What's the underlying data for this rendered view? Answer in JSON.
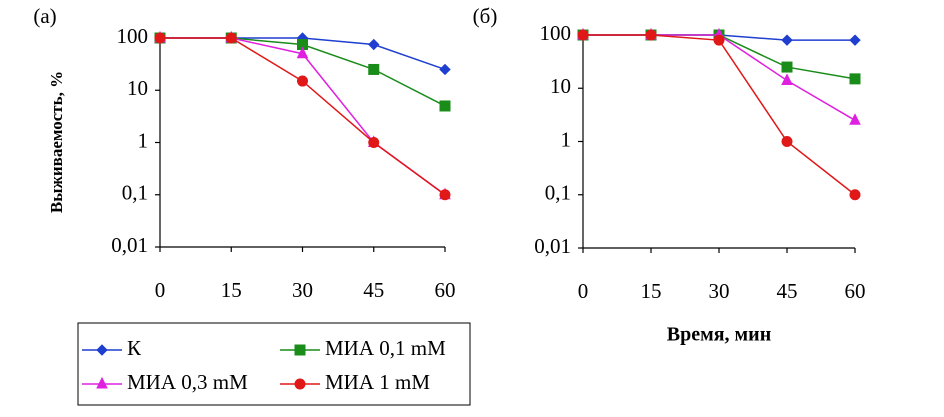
{
  "chart_data": [
    {
      "type": "line",
      "title": "(a)",
      "ylabel": "Выживаемость, %",
      "log_y": true,
      "x": [
        0,
        15,
        30,
        45,
        60
      ],
      "xlim": [
        0,
        60
      ],
      "xticks": [
        0,
        15,
        30,
        45,
        60
      ],
      "ylim": [
        0.01,
        100
      ],
      "yticks": [
        {
          "value": 0.01,
          "label": "0,01"
        },
        {
          "value": 0.1,
          "label": "0,1"
        },
        1,
        10,
        100
      ],
      "series": [
        {
          "name": "К",
          "color": "#1f3fd0",
          "values": [
            100,
            100,
            100,
            75,
            25
          ]
        },
        {
          "name": "МИА 0,1 mM",
          "color": "#1a8c1a",
          "values": [
            100,
            100,
            75,
            25,
            5
          ]
        },
        {
          "name": "МИА 0,3 mM",
          "color": "#e020e0",
          "values": [
            100,
            100,
            50,
            1,
            0.1
          ]
        },
        {
          "name": "МИА 1 mM",
          "color": "#e01818",
          "values": [
            100,
            100,
            15,
            1,
            0.1
          ]
        }
      ]
    },
    {
      "type": "line",
      "title": "(б)",
      "xlabel": "Время, мин",
      "log_y": true,
      "x": [
        0,
        15,
        30,
        45,
        60
      ],
      "xlim": [
        0,
        60
      ],
      "xticks": [
        0,
        15,
        30,
        45,
        60
      ],
      "ylim": [
        0.01,
        100
      ],
      "yticks": [
        {
          "value": 0.01,
          "label": "0,01"
        },
        {
          "value": 0.1,
          "label": "0,1"
        },
        1,
        10,
        100
      ],
      "series": [
        {
          "color": "#1f3fd0",
          "values": [
            100,
            100,
            100,
            80,
            80
          ]
        },
        {
          "color": "#1a8c1a",
          "values": [
            100,
            100,
            100,
            25,
            15
          ]
        },
        {
          "color": "#e020e0",
          "values": [
            100,
            100,
            100,
            14,
            2.5
          ]
        },
        {
          "color": "#e01818",
          "values": [
            100,
            100,
            80,
            1,
            0.1
          ]
        }
      ]
    }
  ]
}
